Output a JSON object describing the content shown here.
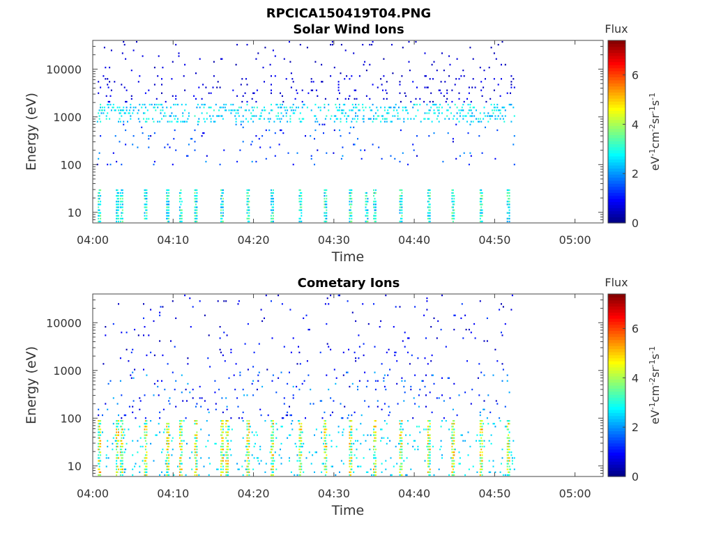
{
  "figure_title": "RPCICA150419T04.PNG",
  "chart_data": [
    {
      "type": "heatmap",
      "title": "Solar Wind Ions",
      "xlabel": "Time",
      "ylabel": "Energy (eV)",
      "x_ticks": [
        "04:00",
        "04:10",
        "04:20",
        "04:30",
        "04:40",
        "04:50",
        "05:00"
      ],
      "x_range_minutes": [
        0,
        63.5
      ],
      "data_extent_minutes": [
        0.5,
        52.5
      ],
      "y_ticks": [
        10,
        100,
        1000,
        10000
      ],
      "y_scale": "log",
      "ylim": [
        6,
        40000
      ],
      "colorbar": {
        "label": "Flux",
        "unit": "eV-1cm-2sr-1s-1",
        "ticks": [
          0,
          2,
          4,
          6
        ],
        "range": [
          0,
          7.4
        ],
        "colormap": "jet"
      },
      "features": {
        "main_band_eV": [
          700,
          2000
        ],
        "main_band_flux": [
          2.0,
          3.2
        ],
        "scatter_flux": [
          0.3,
          1.0
        ],
        "burst_minutes": [
          0.8,
          3.0,
          3.5,
          6.5,
          9.3,
          10.9,
          12.8,
          16.0,
          19.2,
          22.2,
          25.7,
          28.9,
          32.0,
          34.0,
          35.0,
          38.2,
          41.8,
          44.8,
          48.3,
          51.6
        ],
        "burst_flux": [
          2.0,
          3.8
        ]
      }
    },
    {
      "type": "heatmap",
      "title": "Cometary Ions",
      "xlabel": "Time",
      "ylabel": "Energy (eV)",
      "x_ticks": [
        "04:00",
        "04:10",
        "04:20",
        "04:30",
        "04:40",
        "04:50",
        "05:00"
      ],
      "x_range_minutes": [
        0,
        63.5
      ],
      "data_extent_minutes": [
        0.5,
        52.5
      ],
      "y_ticks": [
        10,
        100,
        1000,
        10000
      ],
      "y_scale": "log",
      "ylim": [
        6,
        40000
      ],
      "colorbar": {
        "label": "Flux",
        "unit": "eV-1cm-2sr-1s-1",
        "ticks": [
          0,
          2,
          4,
          6
        ],
        "range": [
          0,
          7.4
        ],
        "colormap": "jet"
      },
      "features": {
        "scatter_flux": [
          0.3,
          1.4
        ],
        "burst_minutes": [
          0.8,
          3.0,
          3.5,
          6.5,
          9.3,
          10.9,
          12.8,
          16.0,
          16.6,
          19.2,
          22.2,
          25.7,
          28.9,
          32.0,
          35.0,
          38.2,
          41.8,
          44.8,
          48.3,
          51.6
        ],
        "burst_flux": [
          2.5,
          5.5
        ]
      }
    }
  ]
}
